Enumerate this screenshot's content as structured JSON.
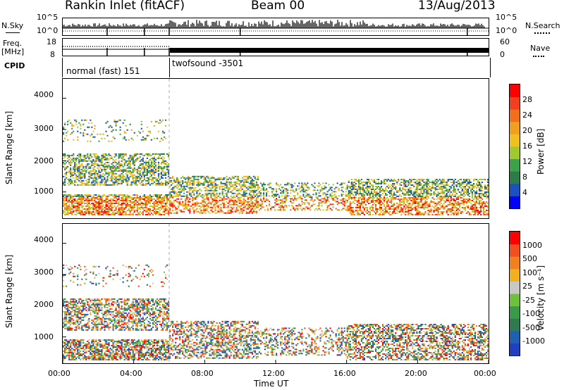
{
  "header": {
    "station": "Rankin Inlet (fitACF)",
    "beam": "Beam 00",
    "date": "13/Aug/2013"
  },
  "strip": {
    "nsky_label": "N.Sky",
    "nsky_ticks": [
      "10^5",
      "10^0"
    ],
    "nsearch_label": "N.Search",
    "nsearch_ticks": [
      "10^5",
      "10^0"
    ],
    "freq_label": "Freq.",
    "freq_unit": "[MHz]",
    "freq_ticks": [
      "18",
      "8"
    ],
    "nave_label": "Nave",
    "nave_ticks": [
      "60",
      "0"
    ],
    "cpid_label": "CPID",
    "cpid_modes": [
      "normal (fast) 151",
      "twofsound -3501"
    ]
  },
  "x_axis": {
    "label": "Time UT",
    "ticks": [
      "00:00",
      "04:00",
      "08:00",
      "12:00",
      "16:00",
      "20:00",
      "00:00"
    ]
  },
  "power_panel": {
    "ylabel": "Slant Range [km]",
    "yticks": [
      "4000",
      "3000",
      "2000",
      "1000"
    ],
    "colorbar_label": "Power [dB]",
    "colorbar_ticks": [
      "28",
      "24",
      "20",
      "16",
      "12",
      "8",
      "4"
    ],
    "colors": [
      "#0000ff",
      "#1c50c0",
      "#2f7a4a",
      "#3fa04a",
      "#a0c830",
      "#f0c020",
      "#f0a020",
      "#f07020",
      "#f04020",
      "#ff0000"
    ]
  },
  "velocity_panel": {
    "ylabel": "Slant Range [km]",
    "yticks": [
      "4000",
      "3000",
      "2000",
      "1000"
    ],
    "colorbar_label": "Velocity [m s⁻¹]",
    "colorbar_ticks": [
      "1000",
      "500",
      "100",
      "25",
      "-25",
      "-100",
      "-500",
      "-1000"
    ],
    "colors": [
      "#2040c0",
      "#2060b0",
      "#307a50",
      "#3a9a4a",
      "#70c040",
      "#c8c8c8",
      "#f0b020",
      "#f08020",
      "#f05020",
      "#ff0000"
    ]
  },
  "chart_data": {
    "type": "heatmap",
    "xlabel": "Time UT",
    "ylabel": "Slant Range [km]",
    "xlim_hours": [
      0,
      24
    ],
    "ylim_km": [
      180,
      4600
    ],
    "mode_change_hour": 6,
    "note_values": {
      "power_db_range": [
        0,
        30
      ],
      "velocity_range": [
        -1000,
        1000
      ]
    }
  }
}
